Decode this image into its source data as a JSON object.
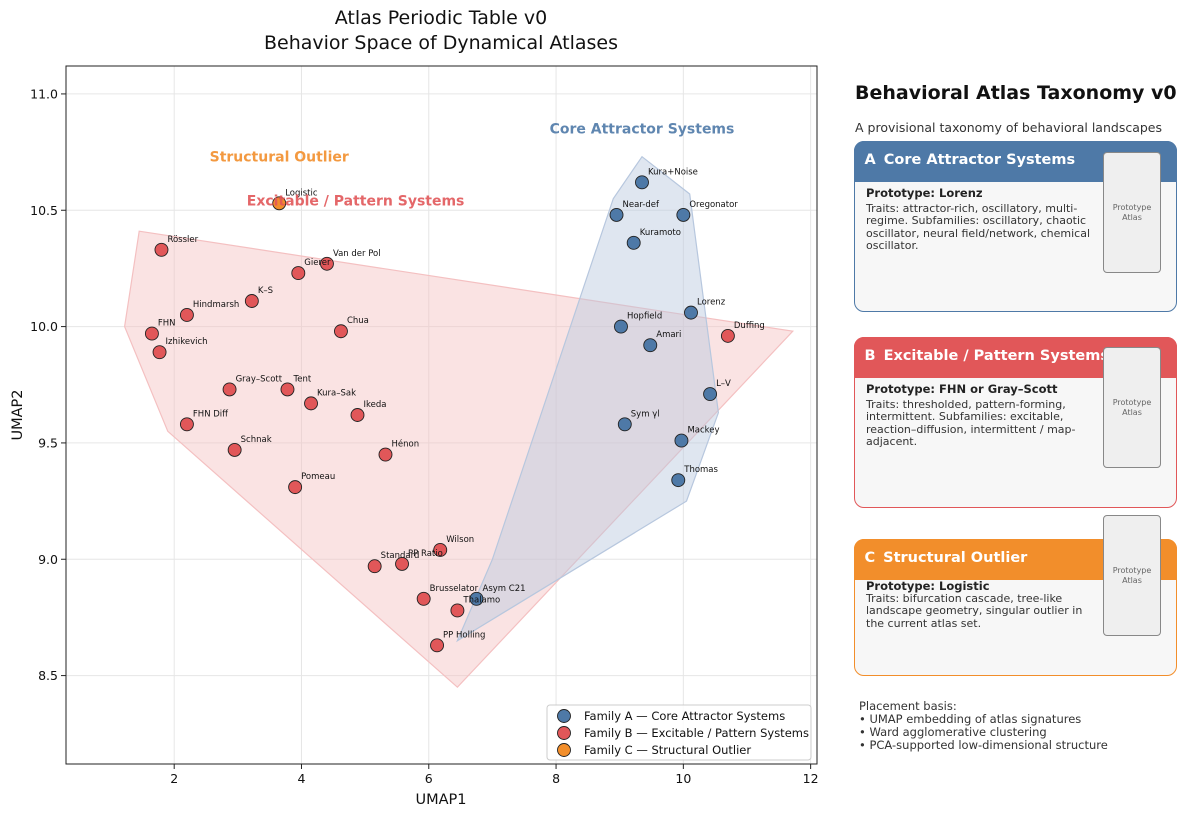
{
  "chart_data": {
    "type": "scatter",
    "title": "Atlas Periodic Table v0",
    "subtitle": "Behavior Space of Dynamical Atlases",
    "xlabel": "UMAP1",
    "ylabel": "UMAP2",
    "xlim": [
      0.3,
      12.1
    ],
    "ylim": [
      8.12,
      11.12
    ],
    "xticks": [
      2,
      4,
      6,
      8,
      10,
      12
    ],
    "yticks": [
      8.5,
      9.0,
      9.5,
      10.0,
      10.5,
      11.0
    ],
    "grid": true,
    "legend_position": "bottom-right",
    "series": [
      {
        "name": "Family A — Core Attractor Systems",
        "color": "#4e79a7",
        "hull_color": "#b7c7de",
        "region_label": "Core Attractor Systems",
        "region_label_pos": [
          9.35,
          10.83
        ],
        "hull": [
          [
            9.35,
            10.73
          ],
          [
            10.1,
            10.57
          ],
          [
            10.55,
            9.63
          ],
          [
            10.05,
            9.25
          ],
          [
            6.45,
            8.65
          ],
          [
            7.0,
            9.0
          ],
          [
            8.9,
            10.55
          ]
        ],
        "points": [
          {
            "label": "Kura+Noise",
            "x": 9.35,
            "y": 10.62
          },
          {
            "label": "Near-def",
            "x": 8.95,
            "y": 10.48
          },
          {
            "label": "Oregonator",
            "x": 10.0,
            "y": 10.48
          },
          {
            "label": "Kuramoto",
            "x": 9.22,
            "y": 10.36
          },
          {
            "label": "Lorenz",
            "x": 10.12,
            "y": 10.06
          },
          {
            "label": "Hopfield",
            "x": 9.02,
            "y": 10.0
          },
          {
            "label": "Amari",
            "x": 9.48,
            "y": 9.92
          },
          {
            "label": "L–V",
            "x": 10.42,
            "y": 9.71
          },
          {
            "label": "Sym γl",
            "x": 9.08,
            "y": 9.58
          },
          {
            "label": "Mackey",
            "x": 9.97,
            "y": 9.51
          },
          {
            "label": "Thomas",
            "x": 9.92,
            "y": 9.34
          },
          {
            "label": "Asym C21",
            "x": 6.75,
            "y": 8.83
          }
        ]
      },
      {
        "name": "Family B — Excitable / Pattern Systems",
        "color": "#e15759",
        "hull_color": "#f4c0c1",
        "region_label": "Excitable / Pattern Systems",
        "region_label_pos": [
          4.85,
          10.52
        ],
        "hull": [
          [
            1.45,
            10.41
          ],
          [
            11.72,
            9.98
          ],
          [
            6.45,
            8.45
          ],
          [
            1.9,
            9.55
          ],
          [
            1.22,
            10.0
          ]
        ],
        "points": [
          {
            "label": "Rössler",
            "x": 1.8,
            "y": 10.33
          },
          {
            "label": "Van der Pol",
            "x": 4.4,
            "y": 10.27
          },
          {
            "label": "Gierer",
            "x": 3.95,
            "y": 10.23
          },
          {
            "label": "K–S",
            "x": 3.22,
            "y": 10.11
          },
          {
            "label": "Hindmarsh",
            "x": 2.2,
            "y": 10.05
          },
          {
            "label": "FHN",
            "x": 1.65,
            "y": 9.97
          },
          {
            "label": "Chua",
            "x": 4.62,
            "y": 9.98
          },
          {
            "label": "Duffing",
            "x": 10.7,
            "y": 9.96
          },
          {
            "label": "Izhikevich",
            "x": 1.77,
            "y": 9.89
          },
          {
            "label": "Gray–Scott",
            "x": 2.87,
            "y": 9.73
          },
          {
            "label": "Tent",
            "x": 3.78,
            "y": 9.73
          },
          {
            "label": "Kura–Sak",
            "x": 4.15,
            "y": 9.67
          },
          {
            "label": "Ikeda",
            "x": 4.88,
            "y": 9.62
          },
          {
            "label": "FHN Diff",
            "x": 2.2,
            "y": 9.58
          },
          {
            "label": "Schnak",
            "x": 2.95,
            "y": 9.47
          },
          {
            "label": "Hénon",
            "x": 5.32,
            "y": 9.45
          },
          {
            "label": "Pomeau",
            "x": 3.9,
            "y": 9.31
          },
          {
            "label": "Wilson",
            "x": 6.18,
            "y": 9.04
          },
          {
            "label": "Standard",
            "x": 5.15,
            "y": 8.97
          },
          {
            "label": "PP Ratio",
            "x": 5.58,
            "y": 8.98
          },
          {
            "label": "Brusselator",
            "x": 5.92,
            "y": 8.83
          },
          {
            "label": "Thalamo",
            "x": 6.45,
            "y": 8.78
          },
          {
            "label": "PP Holling",
            "x": 6.13,
            "y": 8.63
          }
        ]
      },
      {
        "name": "Family C — Structural Outlier",
        "color": "#f28e2b",
        "region_label": "Structural Outlier",
        "region_label_pos": [
          3.65,
          10.71
        ],
        "points": [
          {
            "label": "Logistic",
            "x": 3.65,
            "y": 10.53
          }
        ]
      }
    ]
  },
  "taxonomy": {
    "title": "Behavioral Atlas Taxonomy v0",
    "subtitle": "A provisional taxonomy of behavioral landscapes",
    "families": [
      {
        "letter": "A",
        "name": "Core Attractor Systems",
        "color": "#4e79a7",
        "prototype": "Prototype: Lorenz",
        "body": "Traits: attractor-rich, oscillatory, multi-regime. Subfamilies: oscillatory, chaotic oscillator, neural field/network, chemical oscillator.",
        "thumb_label": "Prototype Atlas"
      },
      {
        "letter": "B",
        "name": "Excitable / Pattern Systems",
        "color": "#e15759",
        "prototype": "Prototype: FHN or Gray–Scott",
        "body": "Traits: thresholded, pattern-forming, intermittent. Subfamilies: excitable, reaction–diffusion, intermittent / map-adjacent.",
        "thumb_label": "Prototype Atlas"
      },
      {
        "letter": "C",
        "name": "Structural Outlier",
        "color": "#f28e2b",
        "prototype": "Prototype: Logistic",
        "body": "Traits: bifurcation cascade, tree-like landscape geometry, singular outlier in the current atlas set.",
        "thumb_label": "Prototype Atlas"
      }
    ],
    "basis_title": "Placement basis:",
    "basis_items": [
      "• UMAP embedding of atlas signatures",
      "• Ward agglomerative clustering",
      "• PCA-supported low-dimensional structure"
    ]
  }
}
